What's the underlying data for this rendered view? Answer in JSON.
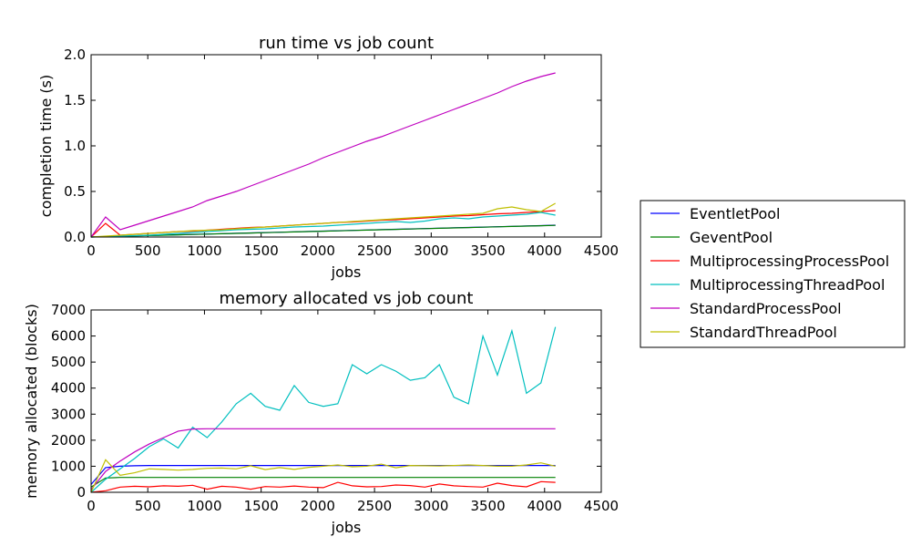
{
  "chart_data": [
    {
      "type": "line",
      "title": "run time vs job count",
      "xlabel": "jobs",
      "ylabel": "completion time (s)",
      "xlim": [
        0,
        4500
      ],
      "ylim": [
        0,
        2.0
      ],
      "xticks": [
        "0",
        "500",
        "1000",
        "1500",
        "2000",
        "2500",
        "3000",
        "3500",
        "4000",
        "4500"
      ],
      "yticks": [
        "0.0",
        "0.5",
        "1.0",
        "1.5",
        "2.0"
      ],
      "x": [
        0,
        128,
        256,
        384,
        512,
        640,
        768,
        896,
        1024,
        1152,
        1280,
        1408,
        1536,
        1664,
        1792,
        1920,
        2048,
        2176,
        2304,
        2432,
        2560,
        2688,
        2816,
        2944,
        3072,
        3200,
        3328,
        3456,
        3584,
        3712,
        3840,
        3968,
        4096
      ],
      "series": [
        {
          "name": "EventletPool",
          "color": "#0000ff",
          "values": [
            0,
            0.005,
            0.009,
            0.013,
            0.017,
            0.021,
            0.025,
            0.029,
            0.033,
            0.037,
            0.041,
            0.045,
            0.049,
            0.053,
            0.057,
            0.061,
            0.065,
            0.069,
            0.073,
            0.077,
            0.081,
            0.085,
            0.089,
            0.093,
            0.097,
            0.101,
            0.105,
            0.109,
            0.113,
            0.117,
            0.121,
            0.125,
            0.13
          ]
        },
        {
          "name": "GeventPool",
          "color": "#008000",
          "values": [
            0,
            0.004,
            0.008,
            0.012,
            0.016,
            0.02,
            0.024,
            0.028,
            0.032,
            0.036,
            0.04,
            0.044,
            0.048,
            0.052,
            0.056,
            0.06,
            0.064,
            0.068,
            0.072,
            0.076,
            0.08,
            0.084,
            0.088,
            0.092,
            0.096,
            0.1,
            0.104,
            0.108,
            0.112,
            0.116,
            0.12,
            0.124,
            0.128
          ]
        },
        {
          "name": "MultiprocessingProcessPool",
          "color": "#ff0000",
          "values": [
            0,
            0.15,
            0.02,
            0.03,
            0.04,
            0.05,
            0.06,
            0.065,
            0.075,
            0.085,
            0.095,
            0.105,
            0.11,
            0.12,
            0.13,
            0.14,
            0.15,
            0.16,
            0.165,
            0.175,
            0.185,
            0.19,
            0.2,
            0.21,
            0.22,
            0.23,
            0.235,
            0.245,
            0.255,
            0.26,
            0.27,
            0.28,
            0.29
          ]
        },
        {
          "name": "MultiprocessingThreadPool",
          "color": "#00bfbf",
          "values": [
            0,
            0.005,
            0.01,
            0.015,
            0.02,
            0.03,
            0.04,
            0.05,
            0.06,
            0.07,
            0.08,
            0.085,
            0.09,
            0.1,
            0.11,
            0.115,
            0.12,
            0.13,
            0.14,
            0.15,
            0.16,
            0.17,
            0.16,
            0.175,
            0.2,
            0.21,
            0.2,
            0.22,
            0.23,
            0.24,
            0.25,
            0.27,
            0.24
          ]
        },
        {
          "name": "StandardProcessPool",
          "color": "#bf00bf",
          "values": [
            0,
            0.22,
            0.08,
            0.13,
            0.18,
            0.23,
            0.28,
            0.33,
            0.4,
            0.45,
            0.5,
            0.56,
            0.62,
            0.68,
            0.74,
            0.8,
            0.87,
            0.93,
            0.99,
            1.05,
            1.1,
            1.16,
            1.22,
            1.28,
            1.34,
            1.4,
            1.46,
            1.52,
            1.58,
            1.65,
            1.71,
            1.76,
            1.8
          ]
        },
        {
          "name": "StandardThreadPool",
          "color": "#bfbf00",
          "values": [
            0,
            0.01,
            0.02,
            0.03,
            0.04,
            0.05,
            0.06,
            0.07,
            0.075,
            0.08,
            0.09,
            0.1,
            0.11,
            0.12,
            0.13,
            0.14,
            0.15,
            0.16,
            0.17,
            0.18,
            0.19,
            0.2,
            0.21,
            0.22,
            0.23,
            0.24,
            0.25,
            0.26,
            0.31,
            0.33,
            0.3,
            0.28,
            0.37
          ]
        }
      ]
    },
    {
      "type": "line",
      "title": "memory allocated vs job count",
      "xlabel": "jobs",
      "ylabel": "memory allocated (blocks)",
      "xlim": [
        0,
        4500
      ],
      "ylim": [
        0,
        7000
      ],
      "xticks": [
        "0",
        "500",
        "1000",
        "1500",
        "2000",
        "2500",
        "3000",
        "3500",
        "4000",
        "4500"
      ],
      "yticks": [
        "0",
        "1000",
        "2000",
        "3000",
        "4000",
        "5000",
        "6000",
        "7000"
      ],
      "x": [
        0,
        128,
        256,
        384,
        512,
        640,
        768,
        896,
        1024,
        1152,
        1280,
        1408,
        1536,
        1664,
        1792,
        1920,
        2048,
        2176,
        2304,
        2432,
        2560,
        2688,
        2816,
        2944,
        3072,
        3200,
        3328,
        3456,
        3584,
        3712,
        3840,
        3968,
        4096
      ],
      "series": [
        {
          "name": "EventletPool",
          "color": "#0000ff",
          "values": [
            300,
            950,
            1000,
            1020,
            1030,
            1030,
            1030,
            1030,
            1030,
            1030,
            1030,
            1030,
            1030,
            1030,
            1030,
            1030,
            1030,
            1030,
            1030,
            1030,
            1030,
            1030,
            1030,
            1030,
            1030,
            1030,
            1030,
            1030,
            1030,
            1030,
            1030,
            1030,
            1030
          ]
        },
        {
          "name": "GeventPool",
          "color": "#008000",
          "values": [
            200,
            550,
            570,
            570,
            570,
            570,
            570,
            570,
            570,
            570,
            570,
            570,
            570,
            570,
            570,
            570,
            570,
            570,
            570,
            570,
            570,
            570,
            570,
            570,
            570,
            570,
            570,
            570,
            570,
            570,
            570,
            570,
            570
          ]
        },
        {
          "name": "MultiprocessingProcessPool",
          "color": "#ff0000",
          "values": [
            0,
            60,
            200,
            230,
            210,
            250,
            230,
            270,
            120,
            230,
            200,
            120,
            220,
            200,
            240,
            200,
            180,
            380,
            250,
            210,
            220,
            280,
            260,
            200,
            320,
            250,
            220,
            200,
            350,
            260,
            210,
            410,
            380
          ]
        },
        {
          "name": "MultiprocessingThreadPool",
          "color": "#00bfbf",
          "values": [
            0,
            500,
            900,
            1300,
            1750,
            2050,
            1700,
            2500,
            2100,
            2700,
            3400,
            3800,
            3300,
            3150,
            4100,
            3450,
            3300,
            3400,
            4900,
            4550,
            4900,
            4650,
            4300,
            4400,
            4900,
            3650,
            3400,
            6000,
            4500,
            6200,
            3800,
            4200,
            6350
          ]
        },
        {
          "name": "StandardProcessPool",
          "color": "#bf00bf",
          "values": [
            100,
            800,
            1200,
            1550,
            1850,
            2100,
            2350,
            2430,
            2440,
            2440,
            2440,
            2440,
            2440,
            2440,
            2440,
            2440,
            2440,
            2440,
            2440,
            2440,
            2440,
            2440,
            2440,
            2440,
            2440,
            2440,
            2440,
            2440,
            2440,
            2440,
            2440,
            2440,
            2440
          ]
        },
        {
          "name": "StandardThreadPool",
          "color": "#bfbf00",
          "values": [
            0,
            1250,
            650,
            750,
            900,
            880,
            850,
            880,
            920,
            930,
            900,
            1020,
            870,
            950,
            880,
            960,
            1000,
            1050,
            980,
            1000,
            1080,
            940,
            1030,
            1020,
            1010,
            1030,
            1050,
            1030,
            1000,
            1000,
            1050,
            1130,
            1000
          ]
        }
      ]
    }
  ],
  "legend": {
    "placement": "right",
    "entries": [
      {
        "name": "EventletPool",
        "color": "#0000ff"
      },
      {
        "name": "GeventPool",
        "color": "#008000"
      },
      {
        "name": "MultiprocessingProcessPool",
        "color": "#ff0000"
      },
      {
        "name": "MultiprocessingThreadPool",
        "color": "#00bfbf"
      },
      {
        "name": "StandardProcessPool",
        "color": "#bf00bf"
      },
      {
        "name": "StandardThreadPool",
        "color": "#bfbf00"
      }
    ]
  }
}
